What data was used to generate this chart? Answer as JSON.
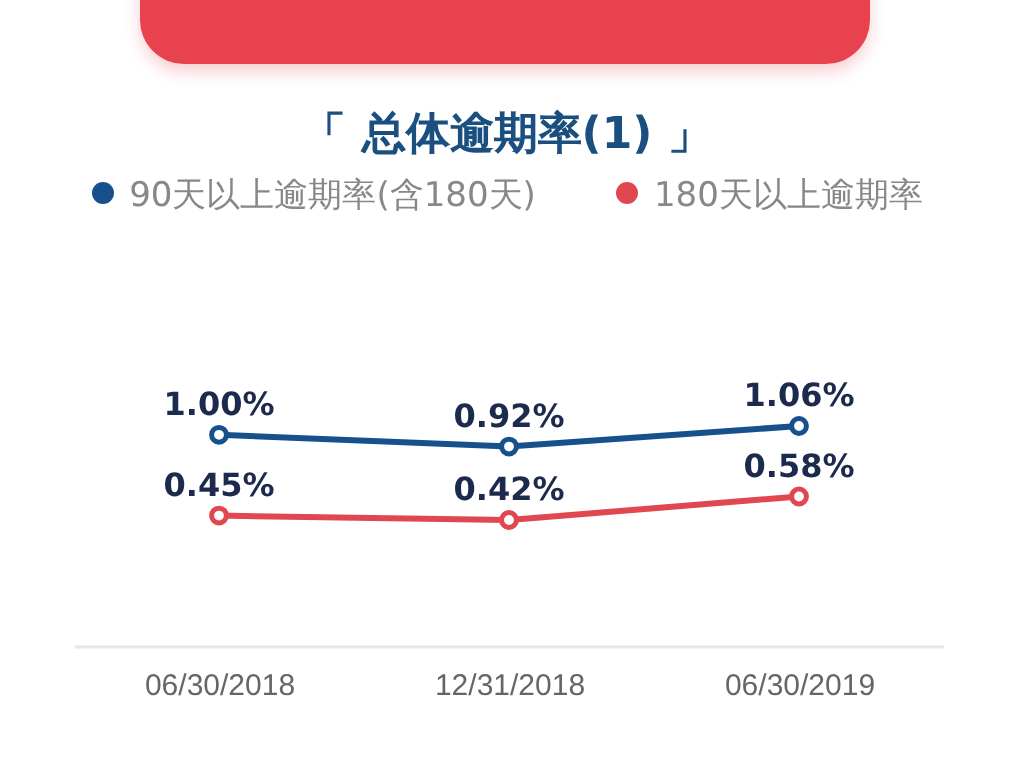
{
  "chart_data": {
    "type": "line",
    "title": "「 总体逾期率(1) 」",
    "categories": [
      "06/30/2018",
      "12/31/2018",
      "06/30/2019"
    ],
    "series": [
      {
        "name": "90天以上逾期率(含180天)",
        "color": "#17508a",
        "values": [
          1.0,
          0.92,
          1.06
        ],
        "value_labels": [
          "1.00%",
          "0.92%",
          "1.06%"
        ]
      },
      {
        "name": "180天以上逾期率",
        "color": "#e0474f",
        "values": [
          0.45,
          0.42,
          0.58
        ],
        "value_labels": [
          "0.45%",
          "0.42%",
          "0.58%"
        ]
      }
    ],
    "legend": "top",
    "marker": "circle",
    "tick_labels": "x"
  }
}
